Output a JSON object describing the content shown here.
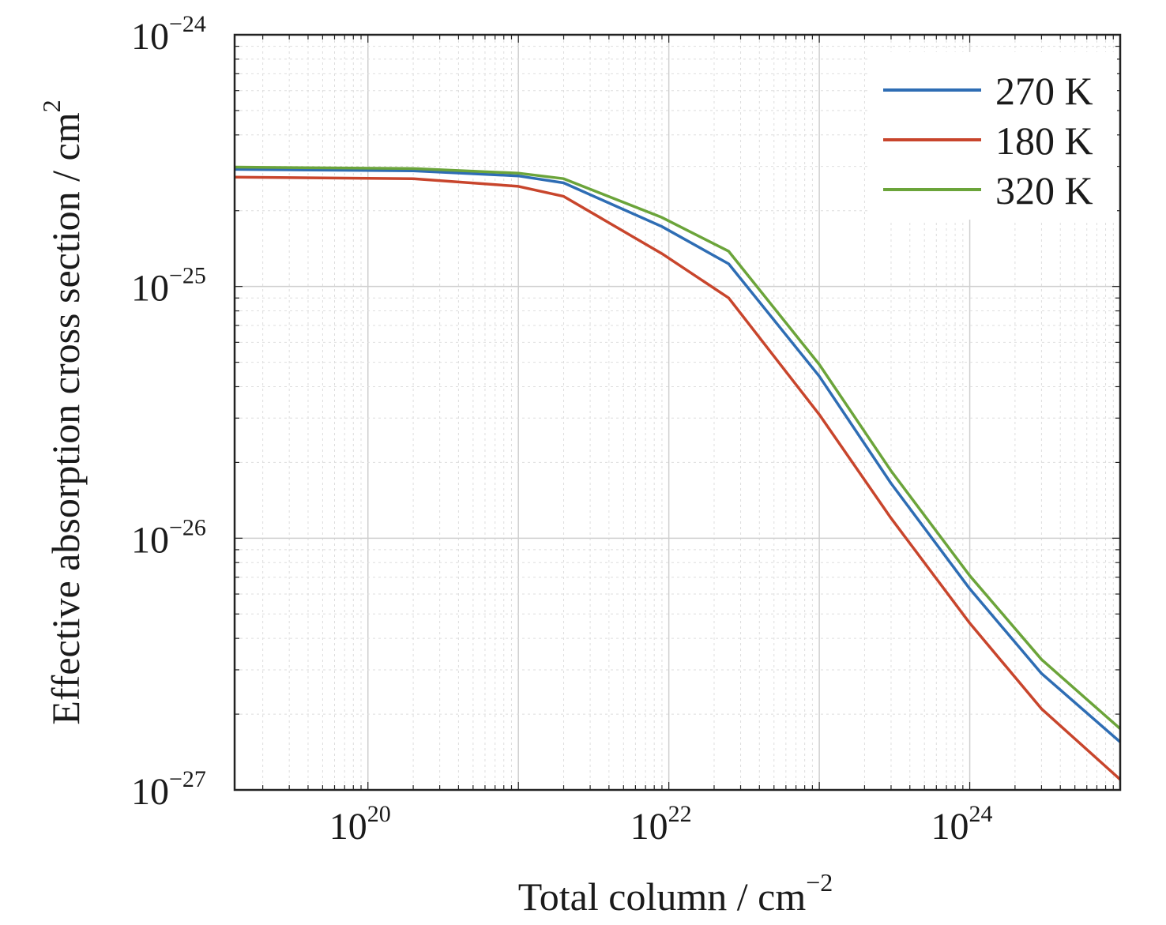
{
  "chart_data": {
    "type": "line",
    "title": "",
    "xlabel": {
      "base": "Total column / cm",
      "sup": "−2"
    },
    "ylabel": {
      "base": "Effective absorption cross section / cm",
      "sup": "2"
    },
    "xscale": "log",
    "yscale": "log",
    "xlim": [
      1.3e+19,
      1e+25
    ],
    "ylim": [
      1e-27,
      1e-24
    ],
    "grid": true,
    "legend_position": "top-right",
    "x_ticks": [
      {
        "value": 1e+20,
        "base": "10",
        "exp": "20"
      },
      {
        "value": 1e+22,
        "base": "10",
        "exp": "22"
      },
      {
        "value": 1e+24,
        "base": "10",
        "exp": "24"
      }
    ],
    "y_ticks": [
      {
        "value": 1e-24,
        "base": "10",
        "exp": "−24"
      },
      {
        "value": 1e-25,
        "base": "10",
        "exp": "−25"
      },
      {
        "value": 1e-26,
        "base": "10",
        "exp": "−26"
      },
      {
        "value": 1e-27,
        "base": "10",
        "exp": "−27"
      }
    ],
    "x": [
      1.3e+19,
      2e+20,
      1e+21,
      2e+21,
      9e+21,
      2.5e+22,
      1e+23,
      3e+23,
      1e+24,
      3e+24,
      1e+25
    ],
    "series": [
      {
        "name": "270 K",
        "color": "#2e6db4",
        "values": [
          2.92e-25,
          2.88e-25,
          2.75e-25,
          2.58e-25,
          1.73e-25,
          1.23e-25,
          4.4e-26,
          1.65e-26,
          6.3e-27,
          2.9e-27,
          1.55e-27
        ]
      },
      {
        "name": "180 K",
        "color": "#c8452c",
        "values": [
          2.72e-25,
          2.68e-25,
          2.5e-25,
          2.28e-25,
          1.35e-25,
          9e-26,
          3.1e-26,
          1.2e-26,
          4.6e-27,
          2.1e-27,
          1.1e-27
        ]
      },
      {
        "name": "320 K",
        "color": "#6ba43a",
        "values": [
          2.98e-25,
          2.94e-25,
          2.82e-25,
          2.68e-25,
          1.88e-25,
          1.38e-25,
          4.9e-26,
          1.85e-26,
          7.1e-27,
          3.3e-27,
          1.75e-27
        ]
      }
    ]
  }
}
